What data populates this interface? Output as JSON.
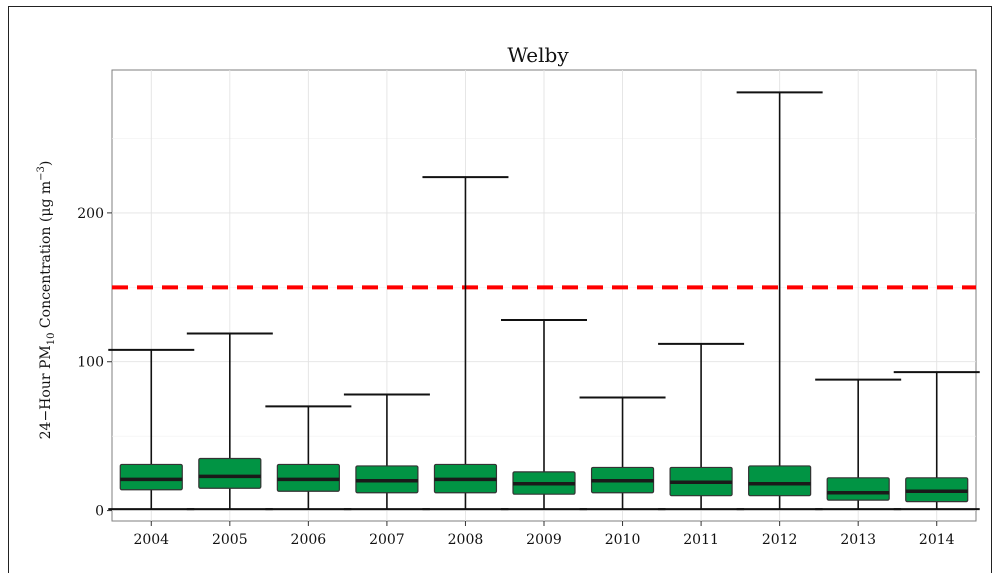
{
  "chart_data": {
    "type": "box",
    "title": "Welby",
    "ylabel": {
      "prefix": "24−Hour PM",
      "sub": "10",
      "middle": " Concentration (μg m",
      "sup": "−3",
      "suffix": ")"
    },
    "ylim": [
      -7,
      296
    ],
    "yticks": [
      0,
      100,
      200
    ],
    "ytick_labels": [
      "0",
      "100",
      "200"
    ],
    "grid": true,
    "reference_line": {
      "value": 150,
      "color": "#ff0000",
      "style": "dashed"
    },
    "box_color": "#019444",
    "categories": [
      "2004",
      "2005",
      "2006",
      "2007",
      "2008",
      "2009",
      "2010",
      "2011",
      "2012",
      "2013",
      "2014"
    ],
    "boxes": [
      {
        "min": 1,
        "q1": 14,
        "median": 21,
        "q3": 31,
        "max": 108
      },
      {
        "min": 1,
        "q1": 15,
        "median": 23,
        "q3": 35,
        "max": 119
      },
      {
        "min": 1,
        "q1": 13,
        "median": 21,
        "q3": 31,
        "max": 70
      },
      {
        "min": 1,
        "q1": 12,
        "median": 20,
        "q3": 30,
        "max": 78
      },
      {
        "min": 1,
        "q1": 12,
        "median": 21,
        "q3": 31,
        "max": 224
      },
      {
        "min": 1,
        "q1": 11,
        "median": 18,
        "q3": 26,
        "max": 128
      },
      {
        "min": 1,
        "q1": 12,
        "median": 20,
        "q3": 29,
        "max": 76
      },
      {
        "min": 1,
        "q1": 10,
        "median": 19,
        "q3": 29,
        "max": 112
      },
      {
        "min": 1,
        "q1": 10,
        "median": 18,
        "q3": 30,
        "max": 281
      },
      {
        "min": 1,
        "q1": 7,
        "median": 12,
        "q3": 22,
        "max": 88
      },
      {
        "min": 1,
        "q1": 6,
        "median": 13,
        "q3": 22,
        "max": 93
      }
    ]
  }
}
